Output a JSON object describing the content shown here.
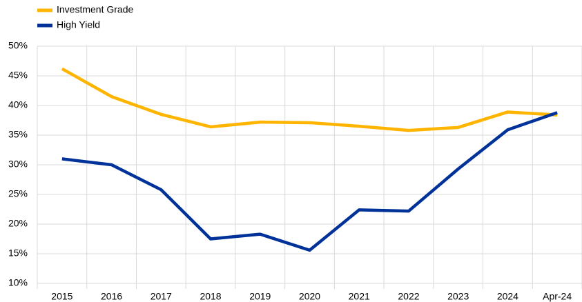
{
  "chart_data": {
    "type": "line",
    "categories": [
      "2015",
      "2016",
      "2017",
      "2018",
      "2019",
      "2020",
      "2021",
      "2022",
      "2023",
      "2024",
      "Apr-24"
    ],
    "series": [
      {
        "name": "Investment Grade",
        "color": "#ffb400",
        "values": [
          46.2,
          41.5,
          38.5,
          36.4,
          37.2,
          37.1,
          36.5,
          35.8,
          36.3,
          38.9,
          38.4
        ]
      },
      {
        "name": "High Yield",
        "color": "#003299",
        "values": [
          31.0,
          30.0,
          25.8,
          17.5,
          18.3,
          15.6,
          22.4,
          22.2,
          29.3,
          35.9,
          38.8
        ]
      }
    ],
    "ylim": [
      10,
      50
    ],
    "yticks": [
      {
        "value": 10,
        "label": "10%"
      },
      {
        "value": 15,
        "label": "15%"
      },
      {
        "value": 20,
        "label": "20%"
      },
      {
        "value": 25,
        "label": "25%"
      },
      {
        "value": 30,
        "label": "30%"
      },
      {
        "value": 35,
        "label": "35%"
      },
      {
        "value": 40,
        "label": "40%"
      },
      {
        "value": 45,
        "label": "45%"
      },
      {
        "value": 50,
        "label": "50%"
      }
    ],
    "grid": true,
    "legend": "top-left"
  }
}
